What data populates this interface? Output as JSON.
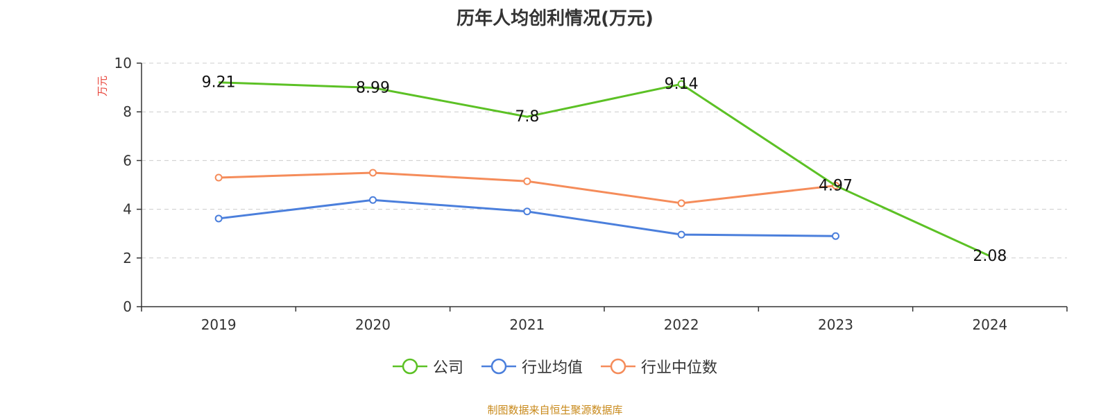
{
  "chart_data": {
    "type": "line",
    "title": "历年人均创利情况(万元)",
    "ylabel": "万元",
    "xlabel": "",
    "categories": [
      "2019",
      "2020",
      "2021",
      "2022",
      "2023",
      "2024"
    ],
    "ylim": [
      0,
      10
    ],
    "yticks": [
      0,
      2,
      4,
      6,
      8,
      10
    ],
    "grid": "horizontal dashed",
    "legend_position": "bottom",
    "series": [
      {
        "name": "公司",
        "color": "#5cc125",
        "values": [
          9.21,
          8.99,
          7.8,
          9.14,
          4.97,
          2.08
        ],
        "labels": [
          "9.21",
          "8.99",
          "7.8",
          "9.14",
          "4.97",
          "2.08"
        ],
        "markers": [
          false,
          false,
          false,
          true,
          false,
          false
        ]
      },
      {
        "name": "行业均值",
        "color": "#4b7fdc",
        "values": [
          3.62,
          4.38,
          3.91,
          2.96,
          2.9,
          null
        ],
        "markers": [
          true,
          true,
          true,
          true,
          true,
          false
        ]
      },
      {
        "name": "行业中位数",
        "color": "#f58c5a",
        "values": [
          5.3,
          5.5,
          5.15,
          4.25,
          4.97,
          null
        ],
        "markers": [
          true,
          true,
          true,
          true,
          true,
          false
        ]
      }
    ]
  },
  "footer": {
    "source": "制图数据来自恒生聚源数据库"
  }
}
